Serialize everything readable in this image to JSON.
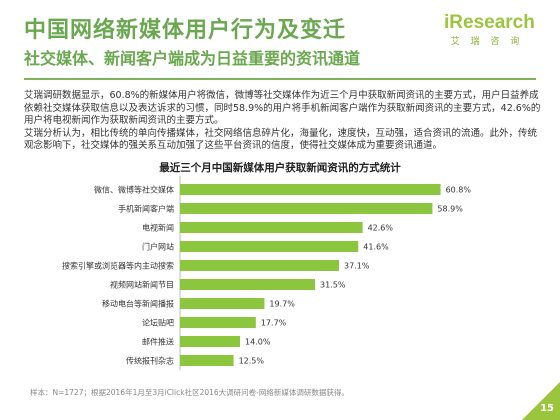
{
  "header": {
    "title": "中国网络新媒体用户行为及变迁",
    "subtitle": "社交媒体、新闻客户端成为日益重要的资讯通道",
    "logo_text": "iResearch",
    "logo_sub": "艾 瑞 咨 询"
  },
  "body": {
    "paragraph1": "艾瑞调研数据显示，60.8%的新媒体用户将微信，微博等社交媒体作为近三个月中获取新闻资讯的主要方式，用户日益养成依赖社交媒体获取信息以及表达诉求的习惯，同时58.9%的用户将手机新闻客户端作为获取新闻资讯的主要方式，42.6%的用户将电视新闻作为获取新闻资讯的主要方式。",
    "paragraph2": "艾瑞分析认为，相比传统的单向传播媒体，社交网络信息碎片化，海量化，速度快，互动强，适合资讯的流通。此外，传统观念影响下，社交媒体的强关系互动加强了这些平台资讯的信度，使得社交媒体成为重要资讯通道。"
  },
  "chart_data": {
    "type": "bar",
    "orientation": "horizontal",
    "title": "最近三个月中国新媒体用户获取新闻资讯的方式统计",
    "categories": [
      "微信、微博等社交媒体",
      "手机新闻客户端",
      "电视新闻",
      "门户网站",
      "搜索引擎或浏览器等内主动搜索",
      "视频网站新闻节目",
      "移动电台等新闻播报",
      "论坛贴吧",
      "邮件推送",
      "传统报刊杂志"
    ],
    "values": [
      60.8,
      58.9,
      42.6,
      41.6,
      37.1,
      31.5,
      19.7,
      17.7,
      14.0,
      12.5
    ],
    "value_labels": [
      "60.8%",
      "58.9%",
      "42.6%",
      "41.6%",
      "37.1%",
      "31.5%",
      "19.7%",
      "17.7%",
      "14.0%",
      "12.5%"
    ],
    "xlim": [
      0,
      70
    ],
    "grid": false,
    "bar_color": "#8cc63f"
  },
  "footer": {
    "source": "样本：N=1727；根据2016年1月至3月iClick社区2016大调研问卷-网络新媒体调研数据获得。",
    "page_number": "15"
  }
}
